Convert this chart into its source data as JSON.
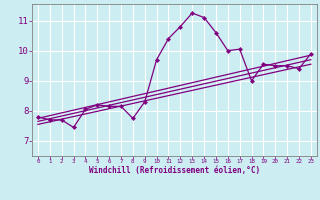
{
  "background_color": "#cceef2",
  "grid_color": "#ffffff",
  "line_color": "#800080",
  "xlabel": "Windchill (Refroidissement éolien,°C)",
  "xlim": [
    -0.5,
    23.5
  ],
  "ylim": [
    6.5,
    11.55
  ],
  "yticks": [
    7,
    8,
    9,
    10,
    11
  ],
  "xticks": [
    0,
    1,
    2,
    3,
    4,
    5,
    6,
    7,
    8,
    9,
    10,
    11,
    12,
    13,
    14,
    15,
    16,
    17,
    18,
    19,
    20,
    21,
    22,
    23
  ],
  "series1_x": [
    0,
    1,
    2,
    3,
    4,
    5,
    6,
    7,
    8,
    9,
    10,
    11,
    12,
    13,
    14,
    15,
    16,
    17,
    18,
    19,
    20,
    21,
    22,
    23
  ],
  "series1_y": [
    7.8,
    7.7,
    7.7,
    7.45,
    8.05,
    8.2,
    8.15,
    8.15,
    7.75,
    8.3,
    9.7,
    10.4,
    10.8,
    11.25,
    11.1,
    10.6,
    10.0,
    10.05,
    9.0,
    9.55,
    9.5,
    9.5,
    9.4,
    9.9
  ],
  "series2_x": [
    0,
    23
  ],
  "series2_y": [
    7.55,
    9.55
  ],
  "series3_x": [
    0,
    23
  ],
  "series3_y": [
    7.65,
    9.7
  ],
  "series4_x": [
    0,
    23
  ],
  "series4_y": [
    7.75,
    9.85
  ]
}
